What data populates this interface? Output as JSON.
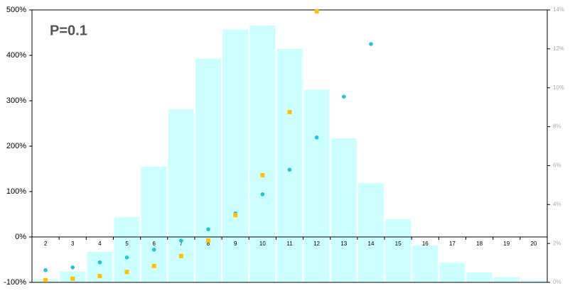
{
  "chart_data": {
    "type": "bar",
    "annotation": "P=0.1",
    "categories": [
      "2",
      "3",
      "4",
      "5",
      "6",
      "7",
      "8",
      "9",
      "10",
      "11",
      "12",
      "13",
      "14",
      "15",
      "16",
      "17",
      "18",
      "19",
      "20"
    ],
    "series": [
      {
        "type": "bar",
        "axis": "y2",
        "color": "#ccffff",
        "values": [
          0.15,
          0.55,
          1.57,
          3.36,
          5.95,
          8.9,
          11.5,
          13.0,
          13.2,
          12.0,
          9.9,
          7.4,
          5.1,
          3.25,
          1.9,
          1.02,
          0.51,
          0.26,
          0.11
        ]
      },
      {
        "type": "scatter",
        "color": "#22c4dc",
        "values": [
          -73,
          -67,
          -56,
          -45,
          -28,
          -8,
          17,
          52,
          94,
          148,
          219,
          309,
          425,
          null,
          null,
          null,
          null,
          null,
          null
        ]
      },
      {
        "type": "scatter",
        "color": "#ffc000",
        "values": [
          -95,
          -92,
          -86,
          -77,
          -64,
          -42,
          -8,
          48,
          136,
          275,
          497,
          null,
          null,
          null,
          null,
          null,
          null,
          null,
          null
        ]
      }
    ],
    "ylim": [
      -100,
      500
    ],
    "yticks": [
      {
        "value": -100,
        "label": "-100%"
      },
      {
        "value": 0,
        "label": "0%"
      },
      {
        "value": 100,
        "label": "100%"
      },
      {
        "value": 200,
        "label": "200%"
      },
      {
        "value": 300,
        "label": "300%"
      },
      {
        "value": 400,
        "label": "400%"
      },
      {
        "value": 500,
        "label": "500%"
      }
    ],
    "y2lim": [
      0,
      14
    ],
    "y2ticks": [
      {
        "value": 0,
        "label": "0%"
      },
      {
        "value": 2,
        "label": "2%"
      },
      {
        "value": 4,
        "label": "4%"
      },
      {
        "value": 6,
        "label": "6%"
      },
      {
        "value": 8,
        "label": "8%"
      },
      {
        "value": 10,
        "label": "10%"
      },
      {
        "value": 12,
        "label": "12%"
      },
      {
        "value": 14,
        "label": "14%"
      }
    ]
  }
}
